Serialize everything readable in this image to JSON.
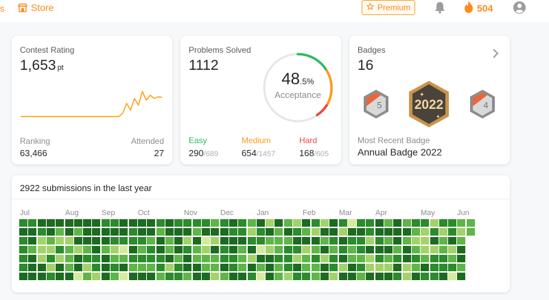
{
  "nav": {
    "left_fragment": "s",
    "store_label": "Store",
    "premium_label": "Premium",
    "streak_count": "504"
  },
  "contest": {
    "title": "Contest Rating",
    "rating": "1,653",
    "rating_unit": "pt",
    "ranking_label": "Ranking",
    "ranking_value": "63,466",
    "attended_label": "Attended",
    "attended_value": "27",
    "trend": [
      1500,
      1500,
      1500,
      1500,
      1500,
      1500,
      1500,
      1500,
      1500,
      1500,
      1500,
      1500,
      1500,
      1500,
      1500,
      1500,
      1500,
      1500,
      1500,
      1500,
      1500,
      1500,
      1500,
      1500,
      1500,
      1500,
      1520,
      1580,
      1540,
      1610,
      1570,
      1653,
      1600,
      1630,
      1610,
      1620,
      1618
    ]
  },
  "problems": {
    "title": "Problems Solved",
    "solved": "1112",
    "acceptance_main": "48",
    "acceptance_decimal": ".5",
    "acceptance_unit": "%",
    "acceptance_label": "Acceptance",
    "easy": {
      "label": "Easy",
      "solved": "290",
      "total": "689",
      "color": "#2cbb5d"
    },
    "medium": {
      "label": "Medium",
      "solved": "654",
      "total": "1457",
      "color": "#ff9a1a"
    },
    "hard": {
      "label": "Hard",
      "solved": "168",
      "total": "605",
      "color": "#ef4743"
    }
  },
  "badges": {
    "title": "Badges",
    "count": "16",
    "featured_year": "2022",
    "left_badge_number": "5",
    "right_badge_number": "4",
    "recent_label": "Most Recent Badge",
    "recent_value": "Annual Badge 2022"
  },
  "submissions": {
    "title": "2922 submissions in the last year",
    "months": [
      "Jul",
      "Aug",
      "Sep",
      "Oct",
      "Nov",
      "Dec",
      "Jan",
      "Feb",
      "Mar",
      "Apr",
      "May",
      "Jun"
    ],
    "palette": [
      "#ffffff",
      "#d6ea9e",
      "#a4d26a",
      "#5fb548",
      "#2b8b2d",
      "#1d6b22"
    ],
    "levels": [
      "44555555544555545444434543525325425414453534424433",
      "55453535555545535553555442453543255255455553242423",
      "4523225555444435352512555443335553454424353225353",
      "4322432353215345354325453512344235343455535322325",
      "4524235445334444535333443255442342453324345434435",
      "4552535245453334245533543535345335425422252354443",
      "5554551325315553443552355415324435255355542544515"
    ]
  }
}
